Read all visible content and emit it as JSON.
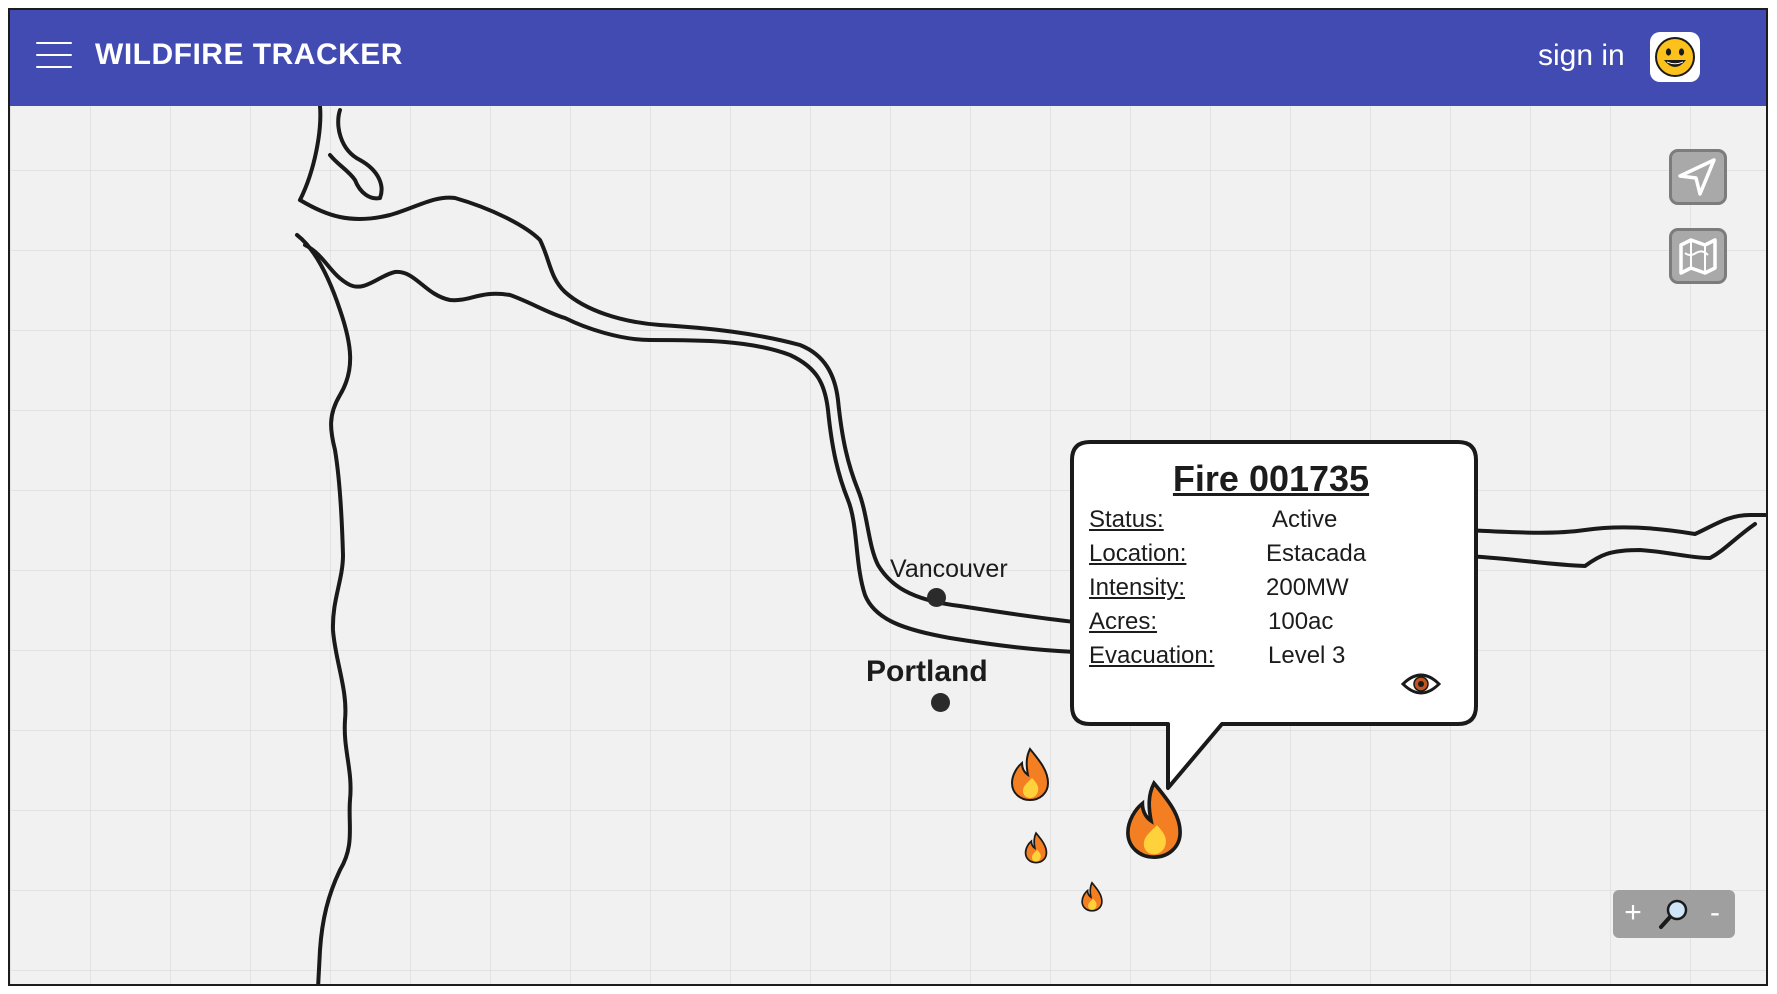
{
  "header": {
    "title": "WILDFIRE TRACKER",
    "menu_icon": "hamburger-menu-icon",
    "sign_in_label": "sign in",
    "avatar_icon": "smiley-face-icon",
    "bar_color": "#424bb2"
  },
  "map": {
    "cities": [
      {
        "name": "Vancouver"
      },
      {
        "name": "Portland"
      }
    ],
    "fire_markers": [
      {
        "icon": "fire-icon",
        "selected": false
      },
      {
        "icon": "fire-icon",
        "selected": false
      },
      {
        "icon": "fire-icon",
        "selected": false
      },
      {
        "icon": "fire-icon",
        "selected": true
      }
    ],
    "controls": {
      "locate_icon": "navigation-arrow-icon",
      "layers_icon": "folded-map-icon",
      "zoom_in": "+",
      "zoom_icon": "magnifier-icon",
      "zoom_out": "-"
    }
  },
  "popup": {
    "title": "Fire 001735",
    "fields": [
      {
        "label": "Status:",
        "value": "Active"
      },
      {
        "label": "Location:",
        "value": "Estacada"
      },
      {
        "label": "Intensity:",
        "value": "200MW"
      },
      {
        "label": "Acres:",
        "value": "100ac"
      },
      {
        "label": "Evacuation:",
        "value": "Level 3"
      }
    ],
    "view_icon": "eye-icon"
  }
}
